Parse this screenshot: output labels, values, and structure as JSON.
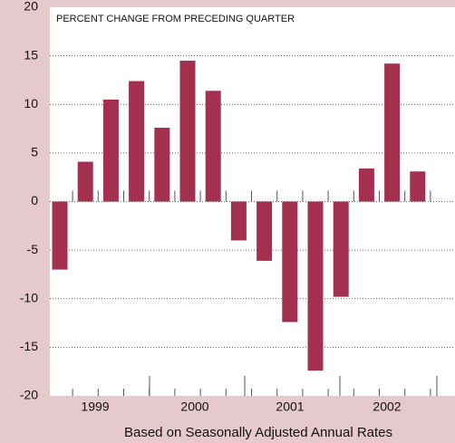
{
  "chart_data": {
    "type": "bar",
    "title": "PERCENT CHANGE FROM PRECEDING QUARTER",
    "x_label": "Based on Seasonally Adjusted Annual Rates",
    "categories": [
      null,
      null,
      null,
      null,
      null,
      null,
      null,
      null,
      null,
      null,
      null,
      null,
      null,
      null,
      null
    ],
    "year_labels": [
      "1999",
      "2000",
      "2001",
      "2002"
    ],
    "values": [
      -7,
      4.1,
      10.5,
      12.4,
      7.6,
      14.5,
      11.4,
      -4,
      -6.1,
      -12.4,
      -17.4,
      -9.8,
      3.4,
      14.2,
      3.1
    ],
    "color": "#a3304f",
    "ylim": [
      -20,
      20
    ],
    "yticks": [
      -20,
      -15,
      -10,
      -5,
      0,
      5,
      10,
      15,
      20
    ],
    "grid": true
  }
}
